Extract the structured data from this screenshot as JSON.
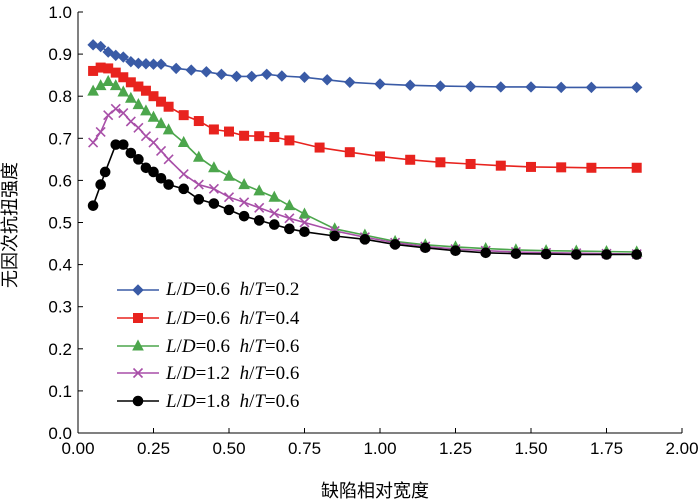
{
  "chart_data": {
    "type": "line",
    "xlabel": "缺陷相对宽度",
    "ylabel": "无因次抗扭强度",
    "xlim": [
      0,
      2.0
    ],
    "ylim": [
      0,
      1.0
    ],
    "xticks": [
      "0.00",
      "0.25",
      "0.50",
      "0.75",
      "1.00",
      "1.25",
      "1.50",
      "1.75",
      "2.00"
    ],
    "yticks": [
      "0.0",
      "0.1",
      "0.2",
      "0.3",
      "0.4",
      "0.5",
      "0.6",
      "0.7",
      "0.8",
      "0.9",
      "1.0"
    ],
    "grid": false,
    "legend_position": "bottom-left",
    "series": [
      {
        "name": "L/D=0.6  h/T=0.2",
        "legend": {
          "a": "L",
          "b": "/",
          "c": "D",
          "d": "=0.6  ",
          "e": "h",
          "f": "/",
          "g": "T",
          "h": "=0.2"
        },
        "color": "#3A5BA6",
        "marker": "diamond",
        "x": [
          0.05,
          0.075,
          0.1,
          0.125,
          0.15,
          0.175,
          0.2,
          0.225,
          0.25,
          0.275,
          0.325,
          0.375,
          0.425,
          0.475,
          0.525,
          0.575,
          0.625,
          0.675,
          0.75,
          0.825,
          0.9,
          1.0,
          1.1,
          1.2,
          1.3,
          1.4,
          1.5,
          1.6,
          1.7,
          1.85
        ],
        "y": [
          0.922,
          0.918,
          0.905,
          0.897,
          0.893,
          0.882,
          0.878,
          0.877,
          0.876,
          0.876,
          0.866,
          0.862,
          0.858,
          0.852,
          0.847,
          0.847,
          0.852,
          0.848,
          0.845,
          0.839,
          0.833,
          0.829,
          0.826,
          0.824,
          0.823,
          0.822,
          0.822,
          0.821,
          0.821,
          0.821
        ]
      },
      {
        "name": "L/D=0.6  h/T=0.4",
        "legend": {
          "a": "L",
          "b": "/",
          "c": "D",
          "d": "=0.6  ",
          "e": "h",
          "f": "/",
          "g": "T",
          "h": "=0.4"
        },
        "color": "#E8231E",
        "marker": "square",
        "x": [
          0.05,
          0.075,
          0.1,
          0.125,
          0.15,
          0.175,
          0.2,
          0.225,
          0.25,
          0.275,
          0.3,
          0.35,
          0.4,
          0.45,
          0.5,
          0.55,
          0.6,
          0.65,
          0.7,
          0.8,
          0.9,
          1.0,
          1.1,
          1.2,
          1.3,
          1.4,
          1.5,
          1.6,
          1.7,
          1.85
        ],
        "y": [
          0.86,
          0.868,
          0.866,
          0.856,
          0.845,
          0.833,
          0.823,
          0.813,
          0.8,
          0.787,
          0.775,
          0.755,
          0.741,
          0.721,
          0.716,
          0.706,
          0.705,
          0.703,
          0.695,
          0.678,
          0.667,
          0.657,
          0.649,
          0.643,
          0.639,
          0.635,
          0.632,
          0.631,
          0.63,
          0.63
        ]
      },
      {
        "name": "L/D=0.6  h/T=0.6",
        "legend": {
          "a": "L",
          "b": "/",
          "c": "D",
          "d": "=0.6  ",
          "e": "h",
          "f": "/",
          "g": "T",
          "h": "=0.6"
        },
        "color": "#4CA64C",
        "marker": "triangle",
        "x": [
          0.05,
          0.075,
          0.1,
          0.125,
          0.15,
          0.175,
          0.2,
          0.225,
          0.25,
          0.275,
          0.3,
          0.35,
          0.4,
          0.45,
          0.5,
          0.55,
          0.6,
          0.65,
          0.7,
          0.75,
          0.85,
          0.95,
          1.05,
          1.15,
          1.25,
          1.35,
          1.45,
          1.55,
          1.65,
          1.75,
          1.85
        ],
        "y": [
          0.812,
          0.825,
          0.835,
          0.825,
          0.81,
          0.795,
          0.78,
          0.765,
          0.75,
          0.735,
          0.72,
          0.69,
          0.655,
          0.63,
          0.61,
          0.59,
          0.575,
          0.56,
          0.54,
          0.52,
          0.485,
          0.47,
          0.455,
          0.447,
          0.442,
          0.438,
          0.435,
          0.433,
          0.432,
          0.431,
          0.43
        ]
      },
      {
        "name": "L/D=1.2  h/T=0.6",
        "legend": {
          "a": "L",
          "b": "/",
          "c": "D",
          "d": "=1.2  ",
          "e": "h",
          "f": "/",
          "g": "T",
          "h": "=0.6"
        },
        "color": "#A84FA8",
        "marker": "x",
        "x": [
          0.05,
          0.075,
          0.1,
          0.125,
          0.15,
          0.175,
          0.2,
          0.225,
          0.25,
          0.275,
          0.3,
          0.35,
          0.4,
          0.45,
          0.5,
          0.55,
          0.6,
          0.65,
          0.7,
          0.75,
          0.85,
          0.95,
          1.05,
          1.15,
          1.25,
          1.35,
          1.45,
          1.55,
          1.65,
          1.75,
          1.85
        ],
        "y": [
          0.69,
          0.715,
          0.755,
          0.77,
          0.76,
          0.74,
          0.725,
          0.705,
          0.69,
          0.67,
          0.65,
          0.615,
          0.59,
          0.58,
          0.56,
          0.548,
          0.535,
          0.522,
          0.51,
          0.5,
          0.48,
          0.465,
          0.452,
          0.443,
          0.437,
          0.433,
          0.43,
          0.428,
          0.427,
          0.426,
          0.425
        ]
      },
      {
        "name": "L/D=1.8  h/T=0.6",
        "legend": {
          "a": "L",
          "b": "/",
          "c": "D",
          "d": "=1.8  ",
          "e": "h",
          "f": "/",
          "g": "T",
          "h": "=0.6"
        },
        "color": "#000000",
        "marker": "circle",
        "x": [
          0.05,
          0.075,
          0.09,
          0.125,
          0.15,
          0.175,
          0.2,
          0.225,
          0.25,
          0.275,
          0.3,
          0.35,
          0.4,
          0.45,
          0.5,
          0.55,
          0.6,
          0.65,
          0.7,
          0.75,
          0.85,
          0.95,
          1.05,
          1.15,
          1.25,
          1.35,
          1.45,
          1.55,
          1.65,
          1.75,
          1.85
        ],
        "y": [
          0.54,
          0.59,
          0.62,
          0.685,
          0.685,
          0.665,
          0.65,
          0.63,
          0.62,
          0.605,
          0.59,
          0.58,
          0.555,
          0.545,
          0.53,
          0.515,
          0.505,
          0.495,
          0.485,
          0.478,
          0.468,
          0.46,
          0.448,
          0.44,
          0.433,
          0.428,
          0.426,
          0.425,
          0.424,
          0.424,
          0.424
        ]
      }
    ]
  }
}
